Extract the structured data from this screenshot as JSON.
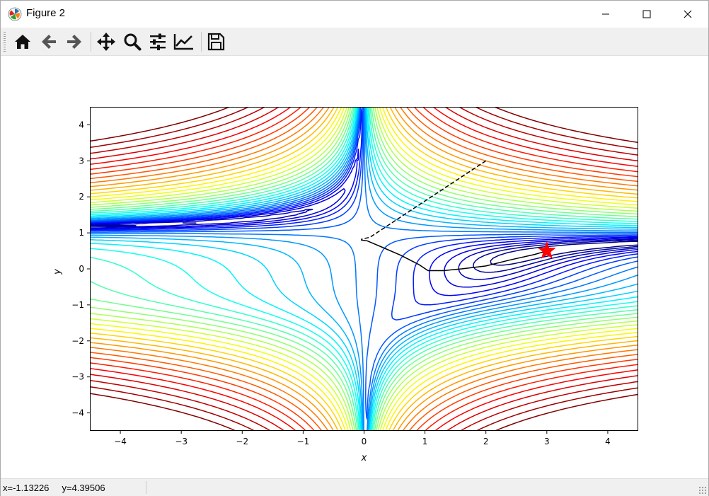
{
  "window": {
    "title": "Figure 2",
    "minimize_icon": "minimize-icon",
    "maximize_icon": "maximize-icon",
    "close_icon": "close-icon"
  },
  "toolbar": {
    "buttons": [
      {
        "name": "home",
        "icon": "home-icon"
      },
      {
        "name": "back",
        "icon": "arrow-left-icon"
      },
      {
        "name": "forward",
        "icon": "arrow-right-icon"
      },
      {
        "name": "pan",
        "icon": "move-icon"
      },
      {
        "name": "zoom",
        "icon": "zoom-icon"
      },
      {
        "name": "configure-subplots",
        "icon": "sliders-icon"
      },
      {
        "name": "edit-axis",
        "icon": "chart-line-icon"
      },
      {
        "name": "save",
        "icon": "save-icon"
      }
    ]
  },
  "status": {
    "coords": "x=-1.13226     y=4.39506"
  },
  "chart_data": {
    "type": "contour",
    "xlabel": "x",
    "ylabel": "y",
    "xlim": [
      -4.5,
      4.5
    ],
    "ylim": [
      -4.5,
      4.5
    ],
    "xticks": [
      -4,
      -3,
      -2,
      -1,
      0,
      1,
      2,
      3,
      4
    ],
    "yticks": [
      -4,
      -3,
      -2,
      -1,
      0,
      1,
      2,
      3,
      4
    ],
    "colormap": "jet",
    "grid": false,
    "paths": [
      {
        "style": "dashed",
        "color": "#000000",
        "points": [
          [
            2.0,
            3.0
          ],
          [
            0.1,
            0.88
          ],
          [
            -0.05,
            0.82
          ]
        ]
      },
      {
        "style": "solid",
        "color": "#000000",
        "points": [
          [
            -0.05,
            0.8
          ],
          [
            0.05,
            0.78
          ],
          [
            0.3,
            0.6
          ],
          [
            0.6,
            0.38
          ],
          [
            0.9,
            0.12
          ],
          [
            1.05,
            -0.05
          ],
          [
            1.3,
            -0.05
          ],
          [
            1.6,
            0.0
          ],
          [
            2.0,
            0.08
          ],
          [
            2.4,
            0.25
          ],
          [
            2.8,
            0.4
          ],
          [
            3.0,
            0.5
          ]
        ]
      }
    ],
    "marker": {
      "x": 3.0,
      "y": 0.5,
      "shape": "star",
      "color": "#ff0000"
    }
  }
}
